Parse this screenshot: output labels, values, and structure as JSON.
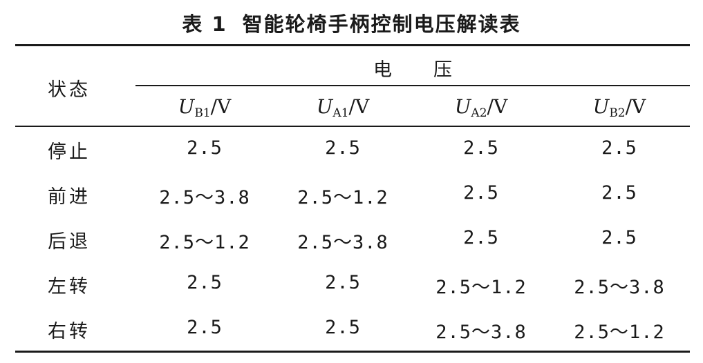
{
  "caption": {
    "number": "表 1",
    "title": "智能轮椅手柄控制电压解读表"
  },
  "table": {
    "status_header": "状态",
    "voltage_header": "电压",
    "columns": [
      {
        "symbol": "U",
        "sub": "B1",
        "unit": "/V"
      },
      {
        "symbol": "U",
        "sub": "A1",
        "unit": "/V"
      },
      {
        "symbol": "U",
        "sub": "A2",
        "unit": "/V"
      },
      {
        "symbol": "U",
        "sub": "B2",
        "unit": "/V"
      }
    ],
    "rows": [
      {
        "label": "停止",
        "values": [
          "2.5",
          "2.5",
          "2.5",
          "2.5"
        ]
      },
      {
        "label": "前进",
        "values": [
          "2.5～3.8",
          "2.5～1.2",
          "2.5",
          "2.5"
        ]
      },
      {
        "label": "后退",
        "values": [
          "2.5～1.2",
          "2.5～3.8",
          "2.5",
          "2.5"
        ]
      },
      {
        "label": "左转",
        "values": [
          "2.5",
          "2.5",
          "2.5～1.2",
          "2.5～3.8"
        ]
      },
      {
        "label": "右转",
        "values": [
          "2.5",
          "2.5",
          "2.5～3.8",
          "2.5～1.2"
        ]
      }
    ]
  }
}
